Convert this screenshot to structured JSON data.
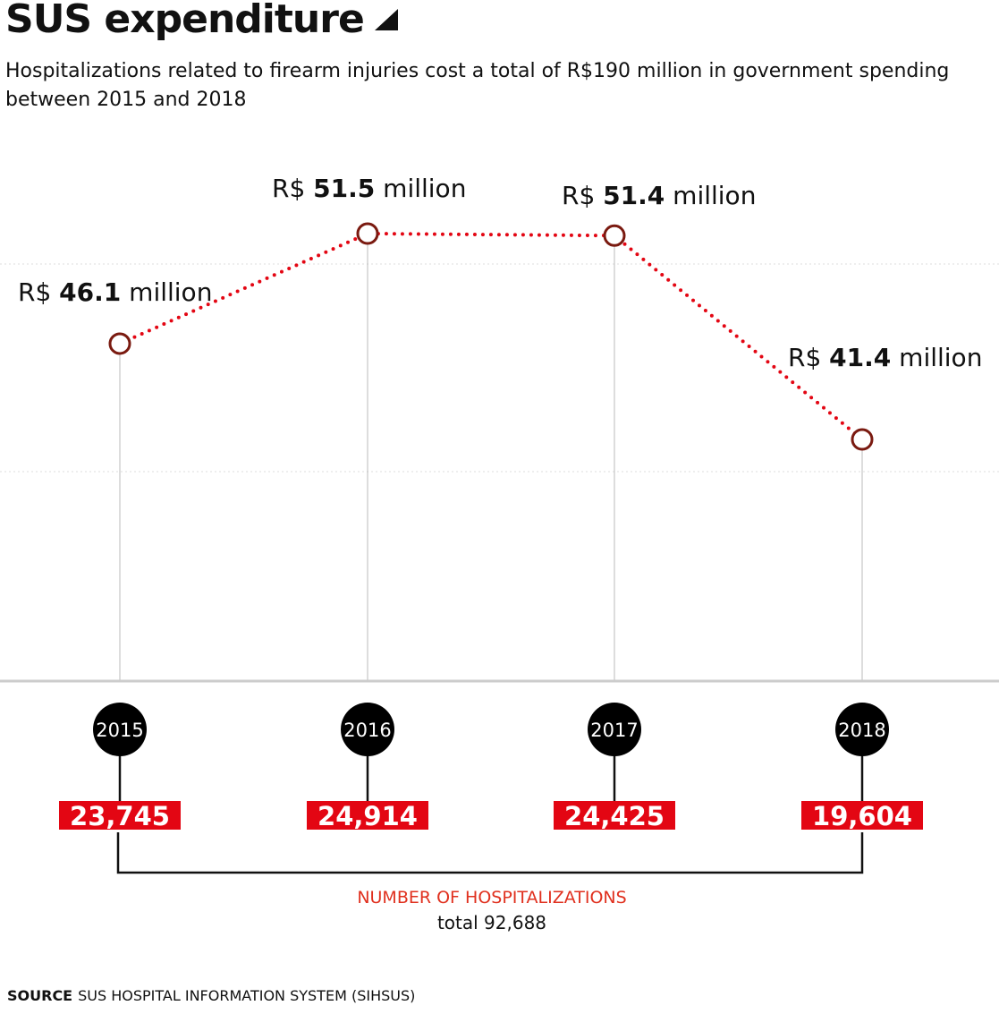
{
  "title": "SUS expenditure",
  "subtitle": "Hospitalizations related to firearm injuries cost a total of R$190 million in government spending between 2015 and 2018",
  "source_label": "SOURCE",
  "source_text": "SUS HOSPITAL INFORMATION SYSTEM (SIHSUS)",
  "colors": {
    "line": "#e30613",
    "marker": "#7a1a10",
    "badge": "#e30613",
    "year": "#000000",
    "caption": "#e0301e"
  },
  "chart_data": {
    "type": "line",
    "categories": [
      "2015",
      "2016",
      "2017",
      "2018"
    ],
    "series": [
      {
        "values": [
          46.1,
          51.5,
          51.4,
          41.4
        ]
      }
    ],
    "value_labels": [
      {
        "prefix": "R$",
        "value": "46.1",
        "suffix": "million"
      },
      {
        "prefix": "R$",
        "value": "51.5",
        "suffix": "million"
      },
      {
        "prefix": "R$",
        "value": "51.4",
        "suffix": "million"
      },
      {
        "prefix": "R$",
        "value": "41.4",
        "suffix": "million"
      }
    ],
    "hospitalizations": [
      "23,745",
      "24,914",
      "24,425",
      "19,604"
    ],
    "hospitalizations_label": "NUMBER OF HOSPITALIZATIONS",
    "total_label": "total 92,688",
    "grid": true
  }
}
